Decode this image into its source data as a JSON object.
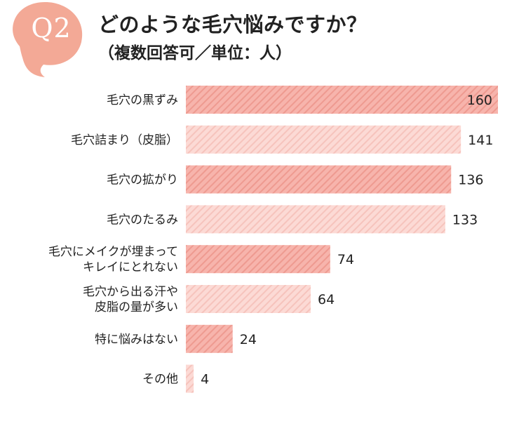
{
  "header": {
    "badge": "Q2",
    "title": "どのような毛穴悩みですか？",
    "subtitle": "（複数回答可／単位：人）"
  },
  "colors": {
    "badge": "#F3A996",
    "bar_dark": "#F7B4AC",
    "bar_dark_stripe": "#EE9A90",
    "bar_light": "#FCDAD5",
    "bar_light_stripe": "#F6C3BC"
  },
  "chart_data": {
    "type": "bar",
    "orientation": "horizontal",
    "title": "どのような毛穴悩みですか？",
    "subtitle": "（複数回答可／単位：人）",
    "unit": "人",
    "categories": [
      [
        "毛穴の黒ずみ"
      ],
      [
        "毛穴詰まり（皮脂）"
      ],
      [
        "毛穴の拡がり"
      ],
      [
        "毛穴のたるみ"
      ],
      [
        "毛穴にメイクが埋まって",
        "キレイにとれない"
      ],
      [
        "毛穴から出る汗や",
        "皮脂の量が多い"
      ],
      [
        "特に悩みはない"
      ],
      [
        "その他"
      ]
    ],
    "values": [
      160,
      141,
      136,
      133,
      74,
      64,
      24,
      4
    ],
    "xlim": [
      0,
      160
    ],
    "grid": false,
    "legend": "none"
  }
}
